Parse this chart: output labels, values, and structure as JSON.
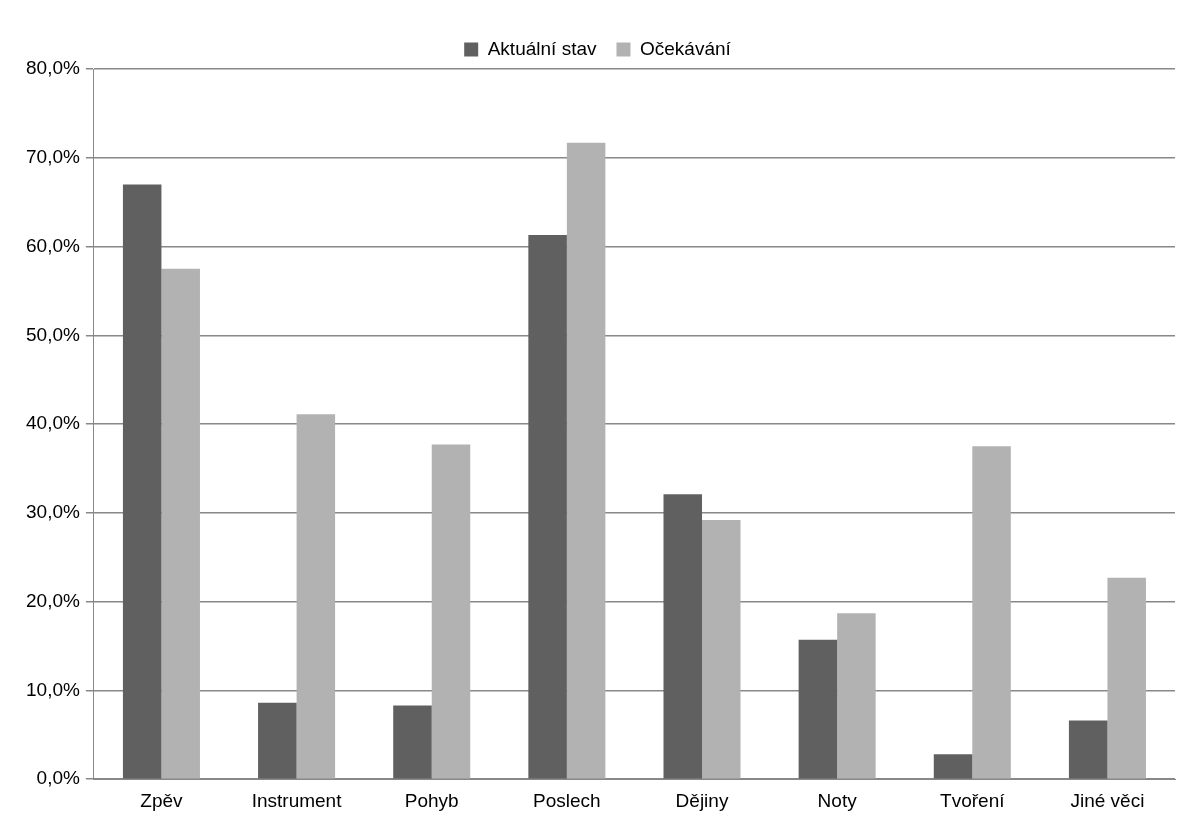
{
  "chart_data": {
    "type": "bar",
    "categories": [
      "Zpěv",
      "Instrument",
      "Pohyb",
      "Poslech",
      "Dějiny",
      "Noty",
      "Tvoření",
      "Jiné věci"
    ],
    "series": [
      {
        "name": "Aktuální stav",
        "color": "#606060",
        "values": [
          67.0,
          8.6,
          8.3,
          61.3,
          32.1,
          15.7,
          2.8,
          6.6
        ]
      },
      {
        "name": "Očekávání",
        "color": "#b2b2b2",
        "values": [
          57.5,
          41.1,
          37.7,
          71.7,
          29.2,
          18.7,
          37.5,
          22.7
        ]
      }
    ],
    "ylim": [
      0,
      80
    ],
    "yticks": [
      {
        "value": 0,
        "label": "0,0%"
      },
      {
        "value": 10,
        "label": "10,0%"
      },
      {
        "value": 20,
        "label": "20,0%"
      },
      {
        "value": 30,
        "label": "30,0%"
      },
      {
        "value": 40,
        "label": "40,0%"
      },
      {
        "value": 50,
        "label": "50,0%"
      },
      {
        "value": 60,
        "label": "60,0%"
      },
      {
        "value": 70,
        "label": "70,0%"
      },
      {
        "value": 80,
        "label": "80,0%"
      }
    ],
    "grid": "y",
    "legend": "top"
  }
}
